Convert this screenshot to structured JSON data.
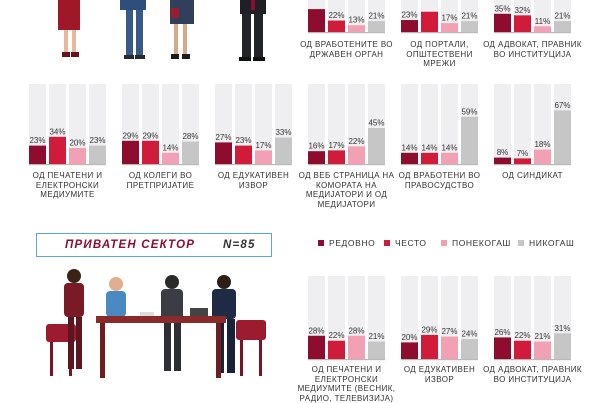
{
  "colors": {
    "regularly": "#8e0d2f",
    "often": "#d11b3b",
    "sometimes": "#f2a0b3",
    "never": "#c6c6c6",
    "accent": "#8e0d2f",
    "banner_border": "#5aa8d8"
  },
  "section": {
    "title": "ПРИВАТЕН СЕКТОР",
    "n": "N=85"
  },
  "legend": [
    "РЕДОВНО",
    "ЧЕСТО",
    "ПОНЕКОГАШ",
    "НИКОГАШ"
  ],
  "chart_data": [
    {
      "type": "bar",
      "title": "ОД ВРАБОТЕНИТЕ ВО ДРЖАВЕН ОРГАН",
      "categories": [
        "РЕДОВНО",
        "ЧЕСТО",
        "ПОНЕКОГАШ",
        "НИКОГАШ"
      ],
      "values": [
        44,
        22,
        13,
        21
      ],
      "labels": [
        "",
        "22%",
        "13%",
        "21%"
      ]
    },
    {
      "type": "bar",
      "title": "ОД ПОРТАЛИ, ОПШТЕСТВЕНИ МРЕЖИ",
      "categories": [
        "РЕДОВНО",
        "ЧЕСТО",
        "ПОНЕКОГАШ",
        "НИКОГАШ"
      ],
      "values": [
        23,
        39,
        17,
        21
      ],
      "labels": [
        "23%",
        "",
        "17%",
        "21%"
      ]
    },
    {
      "type": "bar",
      "title": "ОД АДВОКАТ, ПРАВНИК ВО ИНСТИТУЦИЈА",
      "categories": [
        "РЕДОВНО",
        "ЧЕСТО",
        "ПОНЕКОГАШ",
        "НИКОГАШ"
      ],
      "values": [
        35,
        32,
        11,
        21
      ],
      "labels": [
        "35%",
        "32%",
        "11%",
        "21%"
      ]
    },
    {
      "type": "bar",
      "title": "ОД ПЕЧАТЕНИ И ЕЛЕКТРОНСКИ МЕДИУМИТЕ",
      "categories": [
        "РЕДОВНО",
        "ЧЕСТО",
        "ПОНЕКОГАШ",
        "НИКОГАШ"
      ],
      "values": [
        23,
        34,
        20,
        23
      ],
      "labels": [
        "23%",
        "34%",
        "20%",
        "23%"
      ]
    },
    {
      "type": "bar",
      "title": "ОД КОЛЕГИ ВО ПРЕТПРИЈАТИЕ",
      "categories": [
        "РЕДОВНО",
        "ЧЕСТО",
        "ПОНЕКОГАШ",
        "НИКОГАШ"
      ],
      "values": [
        29,
        29,
        14,
        28
      ],
      "labels": [
        "29%",
        "29%",
        "14%",
        "28%"
      ]
    },
    {
      "type": "bar",
      "title": "ОД ЕДУКАТИВЕН ИЗВОР",
      "categories": [
        "РЕДОВНО",
        "ЧЕСТО",
        "ПОНЕКОГАШ",
        "НИКОГАШ"
      ],
      "values": [
        27,
        23,
        17,
        33
      ],
      "labels": [
        "27%",
        "23%",
        "17%",
        "33%"
      ]
    },
    {
      "type": "bar",
      "title": "ОД ВЕБ СТРАНИЦА НА КОМОРАТА НА МЕДИЈАТОРИ И ОД МЕДИЈАТОРИ",
      "categories": [
        "РЕДОВНО",
        "ЧЕСТО",
        "ПОНЕКОГАШ",
        "НИКОГАШ"
      ],
      "values": [
        16,
        17,
        22,
        45
      ],
      "labels": [
        "16%",
        "17%",
        "22%",
        "45%"
      ]
    },
    {
      "type": "bar",
      "title": "ОД ВРАБОТЕНИ ВО ПРАВОСУДСТВО",
      "categories": [
        "РЕДОВНО",
        "ЧЕСТО",
        "ПОНЕКОГАШ",
        "НИКОГАШ"
      ],
      "values": [
        14,
        14,
        14,
        59
      ],
      "labels": [
        "14%",
        "14%",
        "14%",
        "59%"
      ]
    },
    {
      "type": "bar",
      "title": "ОД СИНДИКАТ",
      "categories": [
        "РЕДОВНО",
        "ЧЕСТО",
        "ПОНЕКОГАШ",
        "НИКОГАШ"
      ],
      "values": [
        8,
        7,
        18,
        67
      ],
      "labels": [
        "8%",
        "7%",
        "18%",
        "67%"
      ]
    },
    {
      "type": "bar",
      "title": "ОД ПЕЧАТЕНИ И ЕЛЕКТРОНСКИ МЕДИУМИТЕ (ВЕСНИК, РАДИО, ТЕЛЕВИЗИЈА)",
      "categories": [
        "РЕДОВНО",
        "ЧЕСТО",
        "ПОНЕКОГАШ",
        "НИКОГАШ"
      ],
      "values": [
        28,
        22,
        28,
        21
      ],
      "labels": [
        "28%",
        "22%",
        "28%",
        "21%"
      ]
    },
    {
      "type": "bar",
      "title": "ОД ЕДУКАТИВЕН ИЗВОР",
      "categories": [
        "РЕДОВНО",
        "ЧЕСТО",
        "ПОНЕКОГАШ",
        "НИКОГАШ"
      ],
      "values": [
        20,
        29,
        27,
        24
      ],
      "labels": [
        "20%",
        "29%",
        "27%",
        "24%"
      ]
    },
    {
      "type": "bar",
      "title": "ОД АДВОКАТ, ПРАВНИК ВО ИНСТИТУЦИЈА",
      "categories": [
        "РЕДОВНО",
        "ЧЕСТО",
        "ПОНЕКОГАШ",
        "НИКОГАШ"
      ],
      "values": [
        26,
        22,
        21,
        31
      ],
      "labels": [
        "26%",
        "22%",
        "21%",
        "31%"
      ]
    }
  ]
}
